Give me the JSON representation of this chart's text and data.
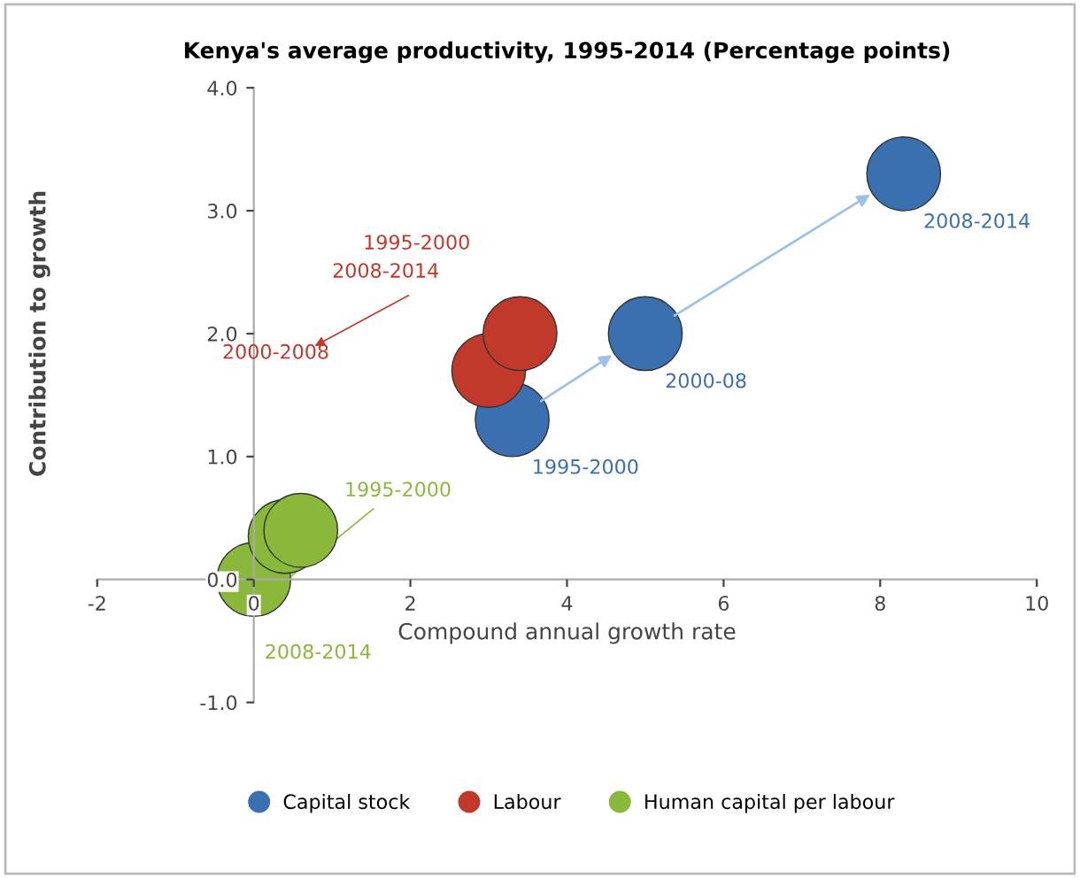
{
  "chart_data": {
    "type": "bubble",
    "title": "Kenya's average productivity, 1995-2014 (Percentage points)",
    "xlabel": "Compound annual growth rate",
    "ylabel": "Contribution to growth",
    "xlim": [
      -2,
      10
    ],
    "xticks": [
      -2,
      0,
      2,
      4,
      6,
      8,
      10
    ],
    "ylim": [
      -1.0,
      4.0
    ],
    "yticks": [
      {
        "value": -1.0,
        "label": "-1.0"
      },
      {
        "value": 0.0,
        "label": "0.0"
      },
      {
        "value": 1.0,
        "label": "1.0"
      },
      {
        "value": 2.0,
        "label": "2.0"
      },
      {
        "value": 3.0,
        "label": "3.0"
      },
      {
        "value": 4.0,
        "label": "4.0"
      }
    ],
    "grid": false,
    "legend": "bottom",
    "series": [
      {
        "name": "Capital stock",
        "color": "#3a6fb0",
        "x": [
          3.3,
          5.0,
          8.3
        ],
        "values": [
          1.3,
          2.0,
          3.3
        ],
        "sizes": [
          1,
          1,
          1
        ]
      },
      {
        "name": "Labour",
        "color": "#c0392b",
        "x": [
          3.0,
          3.4
        ],
        "values": [
          1.7,
          2.0
        ],
        "sizes": [
          1,
          1
        ]
      },
      {
        "name": "Human capital per labour",
        "color": "#8ab83a",
        "x": [
          0.0,
          0.4,
          0.6
        ],
        "values": [
          0.0,
          0.35,
          0.4
        ],
        "sizes": [
          1,
          1,
          1
        ]
      }
    ],
    "annotations": [
      {
        "text": "1995-2000",
        "x": 3.3,
        "y": 1.3
      },
      {
        "text": "2000-08",
        "x": 5.0,
        "y": 2.0
      },
      {
        "text": "2008-2014",
        "x": 8.3,
        "y": 3.3
      },
      "1995-2000",
      "2008-2014",
      "2000-2008",
      "1995-2000",
      "2008-2014"
    ]
  }
}
